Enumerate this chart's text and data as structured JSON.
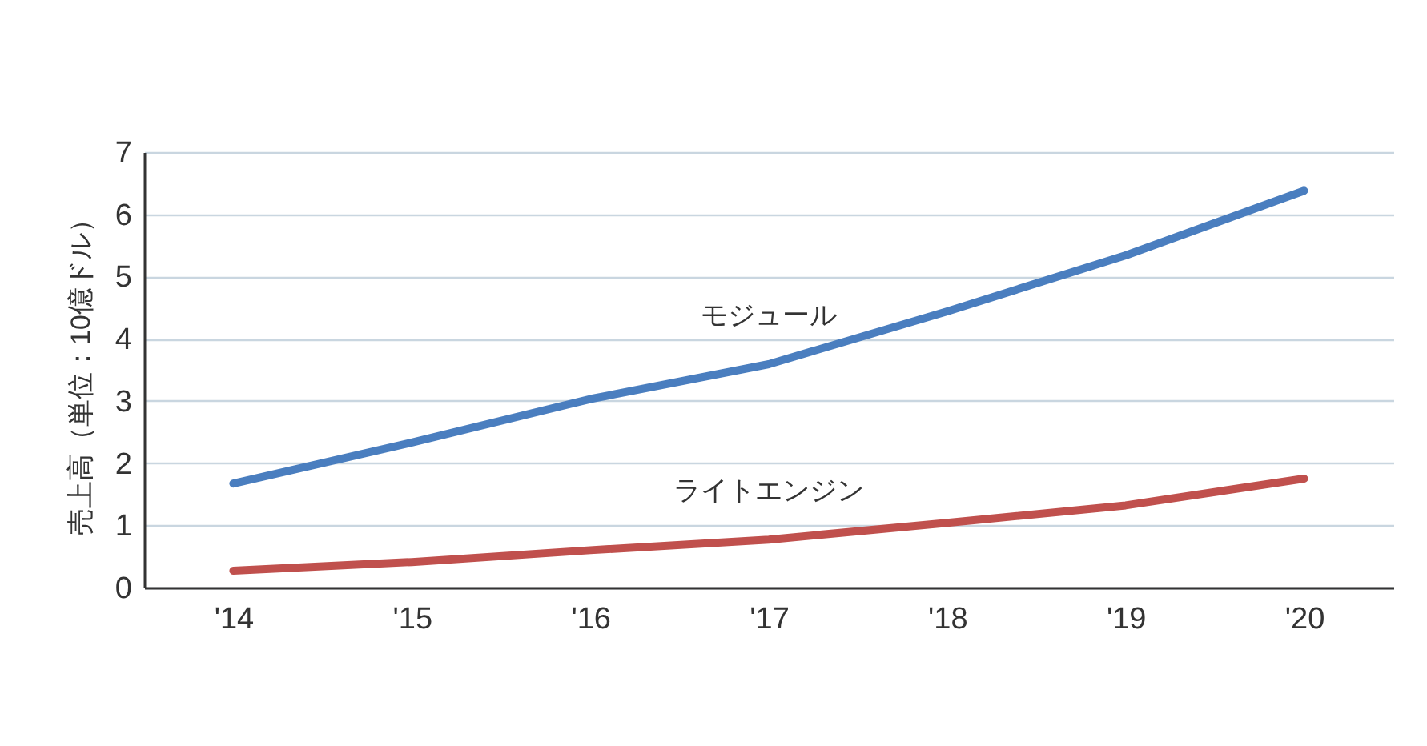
{
  "chart_data": {
    "type": "line",
    "ylabel": "売上高（単位：10億ドル）",
    "categories": [
      "'14",
      "'15",
      "'16",
      "'17",
      "'18",
      "'19",
      "'20"
    ],
    "series": [
      {
        "name": "モジュール",
        "color": "#4a7ebf",
        "values": [
          1.67,
          2.33,
          3.03,
          3.59,
          4.44,
          5.34,
          6.38
        ]
      },
      {
        "name": "ライトエンジン",
        "color": "#c0504d",
        "values": [
          0.27,
          0.41,
          0.6,
          0.77,
          1.04,
          1.32,
          1.75
        ]
      }
    ],
    "ylim": [
      0,
      7
    ],
    "yticks": [
      0,
      1,
      2,
      3,
      4,
      5,
      6,
      7
    ],
    "grid": "y",
    "marker": "none",
    "line_style": "solid"
  }
}
